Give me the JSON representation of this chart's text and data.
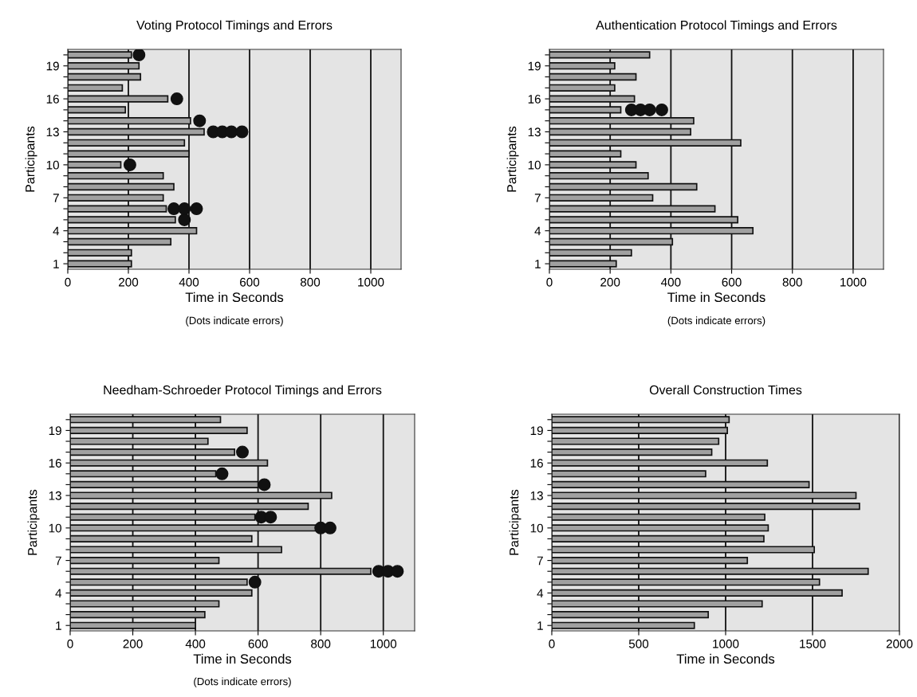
{
  "chart_data": [
    {
      "type": "bar",
      "orientation": "horizontal",
      "title": "Voting Protocol Timings and Errors",
      "xlabel": "Time in Seconds",
      "ylabel": "Participants",
      "annotations": [
        "(Dots indicate errors)"
      ],
      "categories": [
        null,
        "19",
        null,
        null,
        "16",
        null,
        null,
        "13",
        null,
        null,
        "10",
        null,
        null,
        "7",
        null,
        null,
        "4",
        null,
        null,
        "1"
      ],
      "xlim": [
        0,
        1100
      ],
      "xticks": [
        0,
        200,
        400,
        600,
        800,
        1000
      ],
      "grid": "x",
      "series": [
        {
          "color": "#a0a0a0",
          "values": [
            210,
            235,
            240,
            180,
            330,
            190,
            405,
            450,
            385,
            400,
            175,
            315,
            350,
            315,
            325,
            355,
            425,
            340,
            210,
            210
          ]
        },
        {
          "type": "scatter",
          "marker": "circle",
          "color": "#111111",
          "values": [
            235,
            null,
            null,
            null,
            360,
            null,
            435,
            480,
            null,
            null,
            205,
            null,
            null,
            null,
            350,
            385,
            null,
            null,
            null,
            null
          ]
        },
        {
          "type": "scatter",
          "marker": "circle",
          "color": "#111111",
          "values": [
            null,
            null,
            null,
            null,
            null,
            null,
            null,
            510,
            null,
            null,
            null,
            null,
            null,
            null,
            385,
            null,
            null,
            null,
            null,
            null
          ]
        },
        {
          "type": "scatter",
          "marker": "circle",
          "color": "#111111",
          "values": [
            null,
            null,
            null,
            null,
            null,
            null,
            null,
            540,
            null,
            null,
            null,
            null,
            null,
            null,
            425,
            null,
            null,
            null,
            null,
            null
          ]
        },
        {
          "type": "scatter",
          "marker": "circle",
          "color": "#111111",
          "values": [
            null,
            null,
            null,
            null,
            null,
            null,
            null,
            575,
            null,
            null,
            null,
            null,
            null,
            null,
            null,
            null,
            null,
            null,
            null,
            null
          ]
        }
      ]
    },
    {
      "type": "bar",
      "orientation": "horizontal",
      "title": "Authentication Protocol Timings and Errors",
      "xlabel": "Time in Seconds",
      "ylabel": "Participants",
      "annotations": [
        "(Dots indicate errors)"
      ],
      "categories": [
        null,
        "19",
        null,
        null,
        "16",
        null,
        null,
        "13",
        null,
        null,
        "10",
        null,
        null,
        "7",
        null,
        null,
        "4",
        null,
        null,
        "1"
      ],
      "xlim": [
        0,
        1100
      ],
      "xticks": [
        0,
        200,
        400,
        600,
        800,
        1000
      ],
      "grid": "x",
      "series": [
        {
          "color": "#a0a0a0",
          "values": [
            330,
            215,
            285,
            215,
            280,
            235,
            475,
            465,
            630,
            235,
            285,
            325,
            485,
            340,
            545,
            620,
            670,
            405,
            270,
            220
          ]
        },
        {
          "type": "scatter",
          "marker": "circle",
          "color": "#111111",
          "values": [
            null,
            null,
            null,
            null,
            null,
            270,
            null,
            null,
            null,
            null,
            null,
            null,
            null,
            null,
            null,
            null,
            null,
            null,
            null,
            null
          ]
        },
        {
          "type": "scatter",
          "marker": "circle",
          "color": "#111111",
          "values": [
            null,
            null,
            null,
            null,
            null,
            300,
            null,
            null,
            null,
            null,
            null,
            null,
            null,
            null,
            null,
            null,
            null,
            null,
            null,
            null
          ]
        },
        {
          "type": "scatter",
          "marker": "circle",
          "color": "#111111",
          "values": [
            null,
            null,
            null,
            null,
            null,
            330,
            null,
            null,
            null,
            null,
            null,
            null,
            null,
            null,
            null,
            null,
            null,
            null,
            null,
            null
          ]
        },
        {
          "type": "scatter",
          "marker": "circle",
          "color": "#111111",
          "values": [
            null,
            null,
            null,
            null,
            null,
            370,
            null,
            null,
            null,
            null,
            null,
            null,
            null,
            null,
            null,
            null,
            null,
            null,
            null,
            null
          ]
        }
      ]
    },
    {
      "type": "bar",
      "orientation": "horizontal",
      "title": "Needham-Schroeder Protocol Timings and Errors",
      "xlabel": "Time in Seconds",
      "ylabel": "Participants",
      "annotations": [
        "(Dots indicate errors)"
      ],
      "categories": [
        null,
        "19",
        null,
        null,
        "16",
        null,
        null,
        "13",
        null,
        null,
        "10",
        null,
        null,
        "7",
        null,
        null,
        "4",
        null,
        null,
        "1"
      ],
      "xlim": [
        0,
        1100
      ],
      "xticks": [
        0,
        200,
        400,
        600,
        800,
        1000
      ],
      "grid": "x",
      "series": [
        {
          "color": "#a0a0a0",
          "values": [
            480,
            565,
            440,
            525,
            630,
            465,
            600,
            835,
            760,
            590,
            785,
            580,
            675,
            475,
            960,
            565,
            580,
            475,
            430,
            400
          ]
        },
        {
          "type": "scatter",
          "marker": "circle",
          "color": "#111111",
          "values": [
            null,
            null,
            null,
            550,
            null,
            485,
            620,
            null,
            null,
            610,
            800,
            null,
            null,
            null,
            985,
            590,
            null,
            null,
            null,
            null
          ]
        },
        {
          "type": "scatter",
          "marker": "circle",
          "color": "#111111",
          "values": [
            null,
            null,
            null,
            null,
            null,
            null,
            null,
            null,
            null,
            640,
            830,
            null,
            null,
            null,
            1015,
            null,
            null,
            null,
            null,
            null
          ]
        },
        {
          "type": "scatter",
          "marker": "circle",
          "color": "#111111",
          "values": [
            null,
            null,
            null,
            null,
            null,
            null,
            null,
            null,
            null,
            null,
            null,
            null,
            null,
            null,
            1045,
            null,
            null,
            null,
            null,
            null
          ]
        }
      ]
    },
    {
      "type": "bar",
      "orientation": "horizontal",
      "title": "Overall Construction Times",
      "xlabel": "Time in Seconds",
      "ylabel": "Participants",
      "categories": [
        null,
        "19",
        null,
        null,
        "16",
        null,
        null,
        "13",
        null,
        null,
        "10",
        null,
        null,
        "7",
        null,
        null,
        "4",
        null,
        null,
        "1"
      ],
      "xlim": [
        0,
        2000
      ],
      "xticks": [
        0,
        500,
        1000,
        1500,
        2000
      ],
      "grid": "x",
      "series": [
        {
          "color": "#a0a0a0",
          "values": [
            1020,
            1010,
            960,
            920,
            1240,
            885,
            1480,
            1750,
            1770,
            1225,
            1245,
            1220,
            1510,
            1125,
            1820,
            1540,
            1670,
            1210,
            900,
            820
          ]
        }
      ]
    }
  ]
}
